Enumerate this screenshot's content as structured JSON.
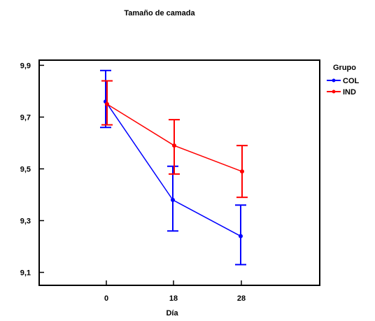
{
  "chart_data": {
    "type": "line",
    "title": "Tamaño de camada",
    "xlabel": "Día",
    "ylabel": "",
    "x": [
      "0",
      "18",
      "28"
    ],
    "ylim": [
      9.05,
      9.92
    ],
    "yticks": [
      "9,1",
      "9,3",
      "9,5",
      "9,7",
      "9,9"
    ],
    "yticks_values": [
      9.1,
      9.3,
      9.5,
      9.7,
      9.9
    ],
    "legend_title": "Grupo",
    "legend_position": "top-right, outside plot",
    "grid": false,
    "series": [
      {
        "name": "COL",
        "color": "#0000ff",
        "values": [
          9.76,
          9.38,
          9.24
        ],
        "err_low": [
          9.66,
          9.26,
          9.13
        ],
        "err_high": [
          9.88,
          9.51,
          9.36
        ]
      },
      {
        "name": "IND",
        "color": "#ff0000",
        "values": [
          9.75,
          9.59,
          9.49
        ],
        "err_low": [
          9.67,
          9.48,
          9.39
        ],
        "err_high": [
          9.84,
          9.69,
          9.59
        ]
      }
    ]
  }
}
